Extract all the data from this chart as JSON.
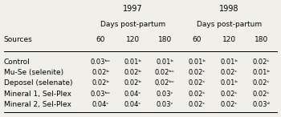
{
  "title_1997": "1997",
  "title_1998": "1998",
  "subheader": "Days post-partum",
  "col_headers": [
    "60",
    "120",
    "180",
    "60",
    "120",
    "180"
  ],
  "row_label_header": "Sources",
  "rows": [
    {
      "label": "Control",
      "values": [
        "0.03ᵇᶜ",
        "0.01ᵇ",
        "0.01ᵇ",
        "0.01ᵇ",
        "0.01ᵇ",
        "0.02ᶜ"
      ]
    },
    {
      "label": "Mu-Se (selenite)",
      "values": [
        "0.02ᵇ",
        "0.02ᵇ",
        "0.02ᵇᶜ",
        "0.02ᶜ",
        "0.02ᶜ",
        "0.01ᵇ"
      ]
    },
    {
      "label": "Deposel (selenate)",
      "values": [
        "0.02ᵇ",
        "0.02ᵇ",
        "0.02ᵇᶜ",
        "0.02ᶜ",
        "0.01ᵇ",
        "0.02ᶜ"
      ]
    },
    {
      "label": "Mineral 1, Sel-Plex",
      "values": [
        "0.03ᵇᶜ",
        "0.04ᶜ",
        "0.03ᶜ",
        "0.02ᶜ",
        "0.02ᶜ",
        "0.02ᶜ"
      ]
    },
    {
      "label": "Mineral 2, Sel-Plex",
      "values": [
        "0.04ᶜ",
        "0.04ᶜ",
        "0.03ᶜ",
        "0.02ᶜ",
        "0.02ᶜ",
        "0.03ᵈ"
      ]
    }
  ],
  "bg_color": "#f0efea",
  "text_color": "#000000",
  "font_size": 6.5,
  "header_font_size": 7.0
}
